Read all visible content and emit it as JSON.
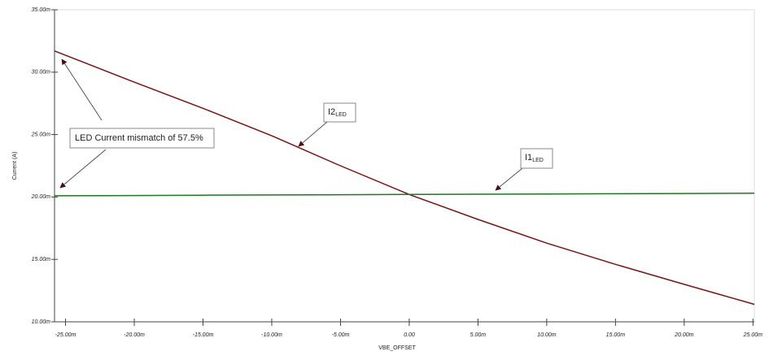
{
  "chart_data": {
    "type": "line",
    "x_label": "VBE_OFFSET",
    "y_label": "Current (A)",
    "x": [
      -25.8,
      -20,
      -15,
      -10,
      -5,
      0,
      5,
      10,
      15,
      20,
      25.1
    ],
    "series": [
      {
        "color": "#7a1414",
        "values": [
          31.7,
          29.2,
          27.1,
          24.9,
          22.5,
          20.2,
          18.2,
          16.3,
          14.6,
          13.0,
          11.4
        ]
      },
      {
        "color": "#1c7a1c",
        "values": [
          20.1,
          20.12,
          20.14,
          20.16,
          20.18,
          20.2,
          20.22,
          20.24,
          20.26,
          20.28,
          20.3
        ]
      }
    ],
    "xlim": [
      -25.8,
      25.1
    ],
    "ylim": [
      10,
      35
    ],
    "xticks": [
      {
        "value": -25,
        "label": "-25.00m"
      },
      {
        "value": -20,
        "label": "-20.00m"
      },
      {
        "value": -15,
        "label": "-15.00m"
      },
      {
        "value": -10,
        "label": "-10.00m"
      },
      {
        "value": -5,
        "label": "-5.00m"
      },
      {
        "value": 0,
        "label": "0.00"
      },
      {
        "value": 5,
        "label": "5.00m"
      },
      {
        "value": 10,
        "label": "10.00m"
      },
      {
        "value": 15,
        "label": "15.00m"
      },
      {
        "value": 20,
        "label": "20.00m"
      },
      {
        "value": 25,
        "label": "25.00m"
      }
    ],
    "yticks": [
      {
        "value": 10,
        "label": "10.00m"
      },
      {
        "value": 15,
        "label": "15.00m"
      },
      {
        "value": 20,
        "label": "20.00m"
      },
      {
        "value": 25,
        "label": "25.00m"
      },
      {
        "value": 30,
        "label": "30.00m"
      },
      {
        "value": 35,
        "label": "35.00m"
      }
    ],
    "annotations": [
      {
        "text": "LED Current mismatch of 57.5%"
      },
      {
        "text": "I2",
        "subscript": "LED"
      },
      {
        "text": "I1",
        "subscript": "LED"
      }
    ]
  }
}
